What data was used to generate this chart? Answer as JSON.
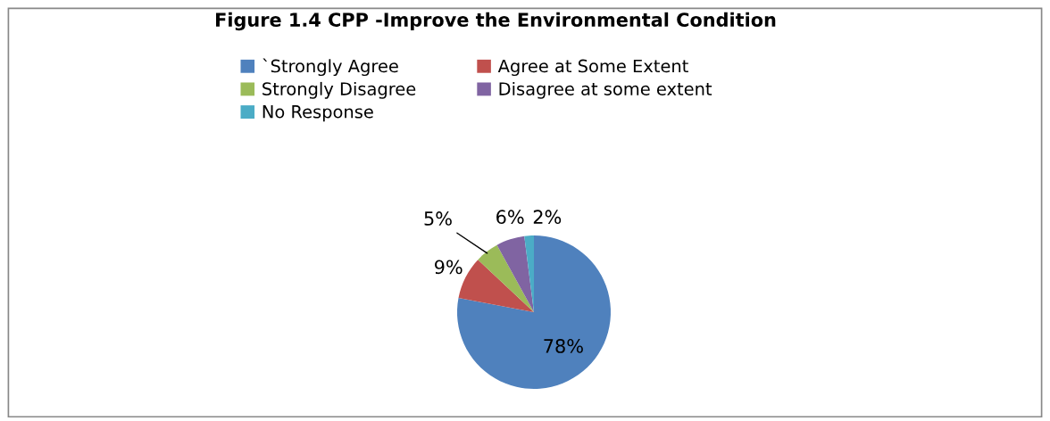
{
  "chart_data": {
    "type": "pie",
    "title": "Figure 1.4 CPP -Improve the Environmental Condition",
    "categories": [
      "`Strongly Agree",
      "Agree at Some Extent",
      "Strongly Disagree",
      "Disagree at some extent",
      "No Response"
    ],
    "values": [
      78,
      9,
      5,
      6,
      2
    ],
    "colors": [
      "#4f81bd",
      "#c0504d",
      "#9bbb59",
      "#8064a2",
      "#4bacc6"
    ],
    "value_labels": [
      "78%",
      "9%",
      "5%",
      "6%",
      "2%"
    ],
    "legend": "top"
  }
}
